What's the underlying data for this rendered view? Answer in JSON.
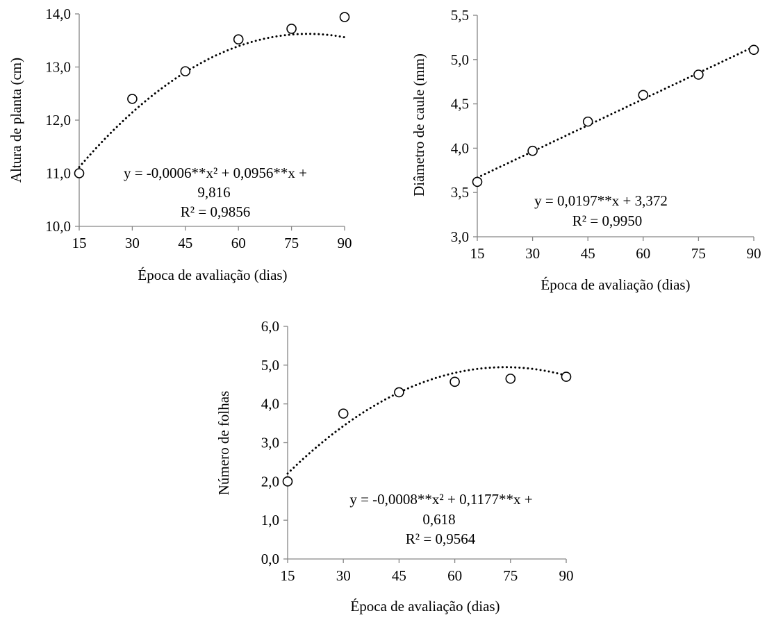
{
  "chart_data": [
    {
      "type": "scatter",
      "xlabel": "Época de avaliação (dias)",
      "ylabel": "Altura de planta (cm)",
      "xlim": [
        15,
        90
      ],
      "ylim": [
        10,
        14
      ],
      "x_ticks": [
        "15",
        "30",
        "45",
        "60",
        "75",
        "90"
      ],
      "y_ticks": [
        "10,0",
        "11,0",
        "12,0",
        "13,0",
        "14,0"
      ],
      "series": [
        {
          "x": [
            15,
            30,
            45,
            60,
            75,
            90
          ],
          "values": [
            11.0,
            12.4,
            12.92,
            13.52,
            13.72,
            13.94
          ]
        }
      ],
      "trendline": {
        "kind": "quadratic",
        "coefficients": [
          -0.0006,
          0.0956,
          9.816
        ],
        "style": "dotted"
      },
      "equation_lines": [
        "y = -0,0006**x² + 0,0956**x +",
        "9,816"
      ],
      "r2_label": "R² = 0,9856"
    },
    {
      "type": "scatter",
      "xlabel": "Época de avaliação (dias)",
      "ylabel": "Diâmetro de caule (mm)",
      "xlim": [
        15,
        90
      ],
      "ylim": [
        3,
        5.5
      ],
      "x_ticks": [
        "15",
        "30",
        "45",
        "60",
        "75",
        "90"
      ],
      "y_ticks": [
        "3,0",
        "3,5",
        "4,0",
        "4,5",
        "5,0",
        "5,5"
      ],
      "series": [
        {
          "x": [
            15,
            30,
            45,
            60,
            75,
            90
          ],
          "values": [
            3.62,
            3.97,
            4.3,
            4.6,
            4.83,
            5.11
          ]
        }
      ],
      "trendline": {
        "kind": "linear",
        "coefficients": [
          0,
          0.0197,
          3.372
        ],
        "style": "dotted"
      },
      "equation_lines": [
        "y = 0,0197**x + 3,372"
      ],
      "r2_label": "R² = 0,9950"
    },
    {
      "type": "scatter",
      "xlabel": "Época de avaliação (dias)",
      "ylabel": "Número de folhas",
      "xlim": [
        15,
        90
      ],
      "ylim": [
        0,
        6
      ],
      "x_ticks": [
        "15",
        "30",
        "45",
        "60",
        "75",
        "90"
      ],
      "y_ticks": [
        "0,0",
        "1,0",
        "2,0",
        "3,0",
        "4,0",
        "5,0",
        "6,0"
      ],
      "series": [
        {
          "x": [
            15,
            30,
            45,
            60,
            75,
            90
          ],
          "values": [
            2.0,
            3.75,
            4.3,
            4.57,
            4.65,
            4.7
          ]
        }
      ],
      "trendline": {
        "kind": "quadratic",
        "coefficients": [
          -0.0008,
          0.1177,
          0.618
        ],
        "style": "dotted"
      },
      "equation_lines": [
        "y = -0,0008**x² + 0,1177**x +",
        "0,618"
      ],
      "r2_label": "R² = 0,9564"
    }
  ]
}
